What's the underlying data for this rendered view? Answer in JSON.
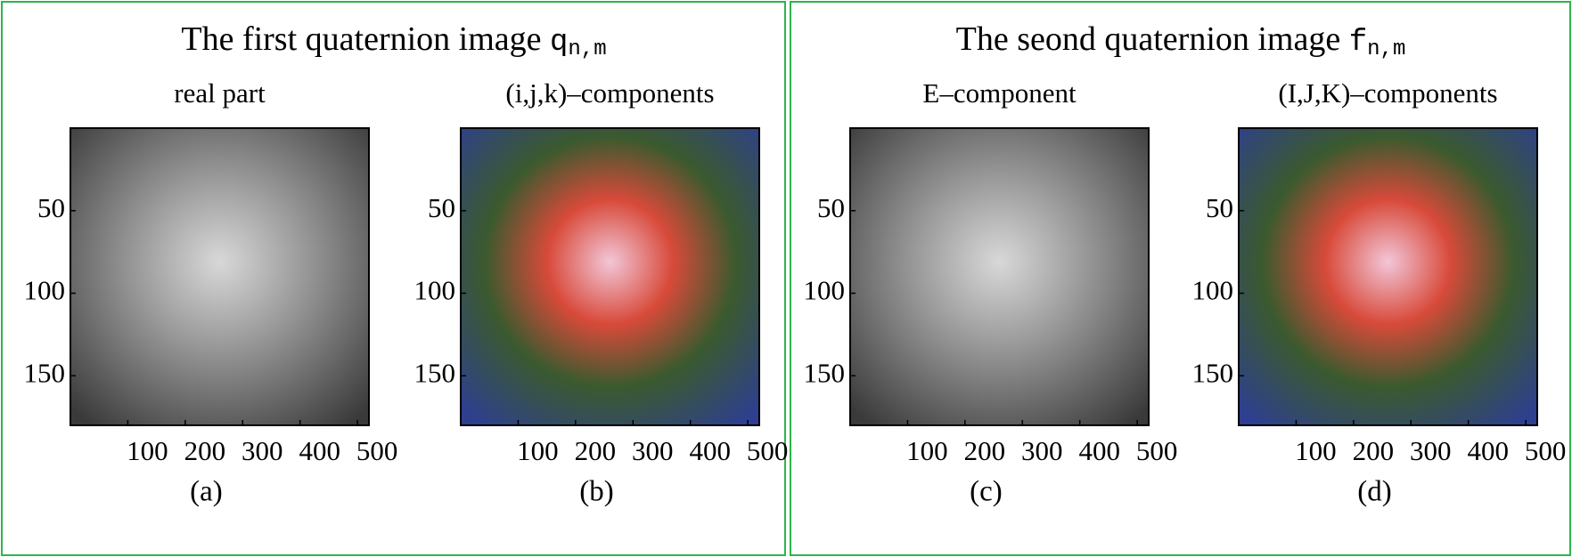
{
  "panels": [
    {
      "title": "The first quaternion image",
      "symbol": "q",
      "subscript": "n,m",
      "subplots": [
        {
          "title": "real part",
          "caption": "(a)",
          "xlim": [
            0,
            520
          ],
          "ylim": [
            0,
            180
          ],
          "xticks": [
            100,
            200,
            300,
            400,
            500
          ],
          "yticks": [
            50,
            100,
            150
          ]
        },
        {
          "title": "(i,j,k)–components",
          "caption": "(b)",
          "xlim": [
            0,
            520
          ],
          "ylim": [
            0,
            180
          ],
          "xticks": [
            100,
            200,
            300,
            400,
            500
          ],
          "yticks": [
            50,
            100,
            150
          ]
        }
      ]
    },
    {
      "title": "The seond quaternion image",
      "symbol": "f",
      "subscript": "n,m",
      "subplots": [
        {
          "title": "E–component",
          "caption": "(c)",
          "xlim": [
            0,
            520
          ],
          "ylim": [
            0,
            180
          ],
          "xticks": [
            100,
            200,
            300,
            400,
            500
          ],
          "yticks": [
            50,
            100,
            150
          ]
        },
        {
          "title": "(I,J,K)–components",
          "caption": "(d)",
          "xlim": [
            0,
            520
          ],
          "ylim": [
            0,
            180
          ],
          "xticks": [
            100,
            200,
            300,
            400,
            500
          ],
          "yticks": [
            50,
            100,
            150
          ]
        }
      ]
    }
  ]
}
